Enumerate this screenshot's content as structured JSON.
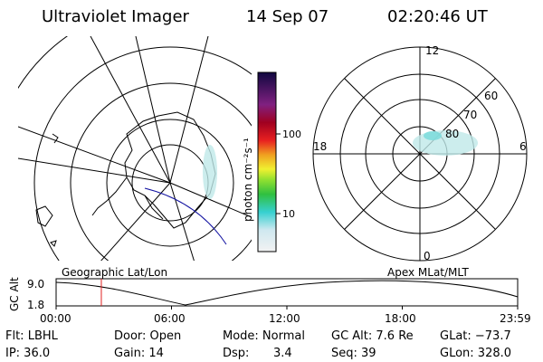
{
  "header": {
    "instrument": "Ultraviolet Imager",
    "date": "14 Sep 07",
    "time": "02:20:46 UT"
  },
  "colorbar": {
    "unit_label": "photon cm⁻²s⁻¹",
    "ticks": [
      "100",
      "10"
    ]
  },
  "polar_plot": {
    "mlt_labels": {
      "top": "12",
      "left": "18",
      "right": "6",
      "bottom": "0"
    },
    "lat_labels": [
      "60",
      "70",
      "80"
    ]
  },
  "panel_labels": {
    "left": "Geographic Lat/Lon",
    "right": "Apex MLat/MLT"
  },
  "altitude_plot": {
    "ylabel": "GC Alt",
    "ytick_top": "9.0",
    "ytick_bottom": "1.8",
    "xticks": [
      "00:00",
      "06:00",
      "12:00",
      "18:00",
      "23:59"
    ],
    "current_time_hours": 2.35
  },
  "info": {
    "flt": "Flt: LBHL",
    "door": "Door: Open",
    "mode": "Mode: Normal",
    "gc_alt": "GC Alt: 7.6 Re",
    "glat": "GLat: −73.7",
    "ip": "IP: 36.0",
    "gain": "Gain: 14",
    "dsp_label": "Dsp:",
    "dsp_value": "3.4",
    "seq": "Seq: 39",
    "glon": "GLon: 328.0"
  }
}
